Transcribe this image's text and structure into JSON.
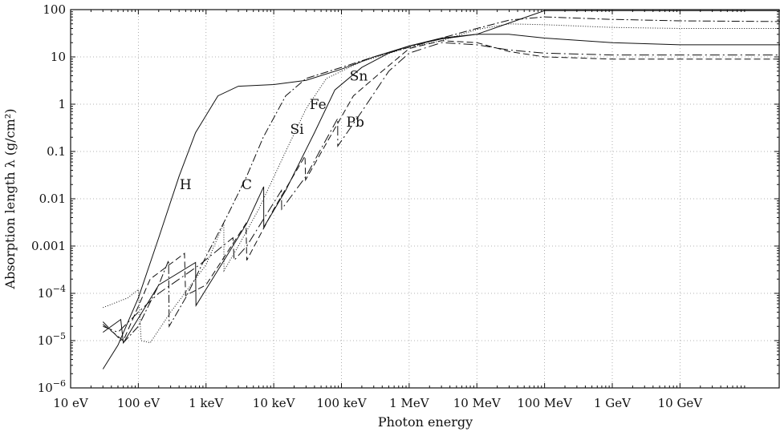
{
  "chart_data": {
    "type": "line",
    "title": "",
    "xlabel": "Photon energy",
    "ylabel": "Absorption length λ  (g/cm²)",
    "x_scale": "log",
    "y_scale": "log",
    "x_unit": "eV",
    "y_unit": "g/cm²",
    "xlim": [
      10,
      300000000000
    ],
    "ylim": [
      1e-06,
      100
    ],
    "grid": true,
    "x_ticks": [
      {
        "value": 10,
        "label": "10 eV"
      },
      {
        "value": 100,
        "label": "100 eV"
      },
      {
        "value": 1000,
        "label": "1 keV"
      },
      {
        "value": 10000,
        "label": "10 keV"
      },
      {
        "value": 100000,
        "label": "100 keV"
      },
      {
        "value": 1000000,
        "label": "1 MeV"
      },
      {
        "value": 10000000,
        "label": "10 MeV"
      },
      {
        "value": 100000000,
        "label": "100 MeV"
      },
      {
        "value": 1000000000,
        "label": "1 GeV"
      },
      {
        "value": 10000000000,
        "label": "10 GeV"
      }
    ],
    "y_ticks": [
      {
        "value": 1e-06,
        "base": "10",
        "exp": "−6"
      },
      {
        "value": 1e-05,
        "base": "10",
        "exp": "−5"
      },
      {
        "value": 0.0001,
        "base": "10",
        "exp": "−4"
      },
      {
        "value": 0.001,
        "label": "0.001"
      },
      {
        "value": 0.01,
        "label": "0.01"
      },
      {
        "value": 0.1,
        "label": "0.1"
      },
      {
        "value": 1,
        "label": "1"
      },
      {
        "value": 10,
        "label": "10"
      },
      {
        "value": 100,
        "label": "100"
      }
    ],
    "series": [
      {
        "name": "H",
        "dash": "solid",
        "label_at": [
          500,
          0.02
        ],
        "points": [
          [
            30,
            2.5e-06
          ],
          [
            50,
            8e-06
          ],
          [
            100,
            8e-05
          ],
          [
            200,
            0.0015
          ],
          [
            400,
            0.03
          ],
          [
            700,
            0.25
          ],
          [
            1500,
            1.5
          ],
          [
            3000,
            2.4
          ],
          [
            10000,
            2.6
          ],
          [
            30000,
            3.2
          ],
          [
            100000,
            5.5
          ],
          [
            300000,
            10
          ],
          [
            1000000,
            17
          ],
          [
            3000000,
            25
          ],
          [
            10000000,
            30
          ],
          [
            30000000,
            30
          ],
          [
            100000000,
            25
          ],
          [
            1000000000,
            20
          ],
          [
            10000000000,
            18
          ],
          [
            300000000000,
            18
          ]
        ]
      },
      {
        "name": "C",
        "dash": "10 3 2 3",
        "label_at": [
          4000,
          0.02
        ],
        "points": [
          [
            30,
            2.5e-05
          ],
          [
            60,
            9e-06
          ],
          [
            100,
            2e-05
          ],
          [
            200,
            0.00015
          ],
          [
            280,
            0.0005
          ],
          [
            285,
            2e-05
          ],
          [
            500,
            8e-05
          ],
          [
            1000,
            0.0006
          ],
          [
            2000,
            0.004
          ],
          [
            4000,
            0.03
          ],
          [
            7000,
            0.2
          ],
          [
            15000,
            1.5
          ],
          [
            30000,
            3.5
          ],
          [
            100000,
            6
          ],
          [
            300000,
            10
          ],
          [
            1000000,
            16
          ],
          [
            3000000,
            25
          ],
          [
            10000000,
            40
          ],
          [
            30000000,
            60
          ],
          [
            100000000,
            70
          ],
          [
            1000000000,
            62
          ],
          [
            10000000000,
            58
          ],
          [
            300000000000,
            56
          ]
        ]
      },
      {
        "name": "Si",
        "dash": "1 2",
        "label_at": [
          22000,
          0.3
        ],
        "points": [
          [
            30,
            5e-05
          ],
          [
            70,
            8e-05
          ],
          [
            100,
            0.00012
          ],
          [
            110,
            1e-05
          ],
          [
            150,
            9e-06
          ],
          [
            300,
            4e-05
          ],
          [
            1000,
            0.0004
          ],
          [
            1830,
            0.003
          ],
          [
            1840,
            0.0003
          ],
          [
            3000,
            0.001
          ],
          [
            6000,
            0.006
          ],
          [
            15000,
            0.1
          ],
          [
            30000,
            0.8
          ],
          [
            60000,
            3.5
          ],
          [
            200000,
            8
          ],
          [
            1000000,
            16
          ],
          [
            3000000,
            22
          ],
          [
            10000000,
            38
          ],
          [
            30000000,
            50
          ],
          [
            100000000,
            48
          ],
          [
            1000000000,
            42
          ],
          [
            10000000000,
            40
          ],
          [
            300000000000,
            40
          ]
        ]
      },
      {
        "name": "Fe",
        "dash": "solid",
        "label_at": [
          45000,
          1.0
        ],
        "points": [
          [
            30,
            1.5e-05
          ],
          [
            55,
            2.8e-05
          ],
          [
            60,
            9e-06
          ],
          [
            200,
            0.00015
          ],
          [
            700,
            0.00045
          ],
          [
            710,
            5.5e-05
          ],
          [
            2000,
            0.0006
          ],
          [
            4000,
            0.003
          ],
          [
            7100,
            0.018
          ],
          [
            7120,
            0.0025
          ],
          [
            15000,
            0.015
          ],
          [
            40000,
            0.25
          ],
          [
            80000,
            2
          ],
          [
            200000,
            6
          ],
          [
            500000,
            12
          ],
          [
            1000000,
            17
          ],
          [
            3000000,
            24
          ],
          [
            10000000,
            30
          ],
          [
            100000000,
            95
          ],
          [
            300000000000,
            95
          ]
        ]
      },
      {
        "name": "Sn",
        "dash": "8 4",
        "label_at": [
          180000,
          4.0
        ],
        "points": [
          [
            30,
            2.2e-05
          ],
          [
            60,
            1e-05
          ],
          [
            150,
            0.0002
          ],
          [
            480,
            0.0007
          ],
          [
            500,
            9e-05
          ],
          [
            1000,
            0.00015
          ],
          [
            3900,
            0.003
          ],
          [
            4000,
            0.0005
          ],
          [
            10000,
            0.006
          ],
          [
            29000,
            0.08
          ],
          [
            29500,
            0.025
          ],
          [
            60000,
            0.15
          ],
          [
            150000,
            1.5
          ],
          [
            400000,
            5
          ],
          [
            1000000,
            15
          ],
          [
            3000000,
            22
          ],
          [
            10000000,
            20
          ],
          [
            30000000,
            13
          ],
          [
            100000000,
            10
          ],
          [
            1000000000,
            9
          ],
          [
            300000000000,
            9
          ]
        ]
      },
      {
        "name": "Pb",
        "dash": "12 4 2 4",
        "label_at": [
          160000,
          0.42
        ],
        "points": [
          [
            30,
            2e-05
          ],
          [
            50,
            1.5e-05
          ],
          [
            100,
            4e-05
          ],
          [
            200,
            0.0001
          ],
          [
            800,
            0.0004
          ],
          [
            2500,
            0.0015
          ],
          [
            2600,
            0.0005
          ],
          [
            4000,
            0.001
          ],
          [
            13000,
            0.015
          ],
          [
            13100,
            0.006
          ],
          [
            30000,
            0.03
          ],
          [
            88000,
            0.5
          ],
          [
            88100,
            0.13
          ],
          [
            200000,
            0.7
          ],
          [
            500000,
            5
          ],
          [
            1000000,
            12
          ],
          [
            3000000,
            20
          ],
          [
            10000000,
            18
          ],
          [
            30000000,
            14
          ],
          [
            100000000,
            12
          ],
          [
            1000000000,
            11
          ],
          [
            300000000000,
            11
          ]
        ]
      }
    ]
  }
}
